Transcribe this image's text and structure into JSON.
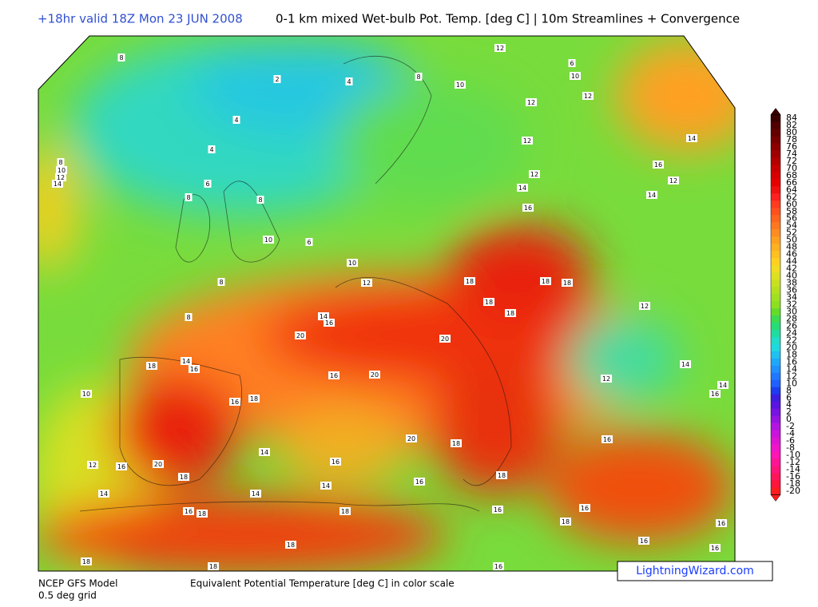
{
  "header": {
    "valid": "+18hr valid 18Z Mon 23 JUN 2008",
    "title": "0-1 km mixed Wet-bulb Pot. Temp. [deg C] | 10m Streamlines + Convergence"
  },
  "footer": {
    "model": "NCEP GFS Model",
    "grid": "0.5 deg grid",
    "scale_note": "Equivalent Potential Temperature [deg C] in color scale",
    "brand": "LightningWizard.com"
  },
  "colorbar": {
    "labels": [
      84,
      82,
      80,
      78,
      76,
      74,
      72,
      70,
      68,
      66,
      64,
      62,
      60,
      58,
      56,
      54,
      52,
      50,
      48,
      46,
      44,
      42,
      40,
      38,
      36,
      34,
      32,
      30,
      28,
      26,
      24,
      22,
      20,
      18,
      16,
      14,
      12,
      10,
      8,
      6,
      4,
      2,
      0,
      -2,
      -4,
      -6,
      -8,
      -10,
      -12,
      -14,
      -16,
      -18,
      -20
    ],
    "colors": [
      "#3a0000",
      "#500000",
      "#640000",
      "#780000",
      "#8c0000",
      "#a00000",
      "#b40000",
      "#c80000",
      "#d80000",
      "#e60000",
      "#f01010",
      "#ff2020",
      "#ff3c1e",
      "#ff501e",
      "#ff641e",
      "#ff7820",
      "#ff8c20",
      "#ffa020",
      "#ffb020",
      "#ffc020",
      "#ffd020",
      "#f0dc20",
      "#dce020",
      "#c8e020",
      "#b4e020",
      "#a0e020",
      "#8ce020",
      "#64dc28",
      "#3cdc50",
      "#28dc78",
      "#20dca0",
      "#20dcc8",
      "#20d8e0",
      "#20c0f0",
      "#20a8f8",
      "#2090ff",
      "#2078ff",
      "#2060ff",
      "#1e3cf0",
      "#3c1ee0",
      "#5a14e0",
      "#7814e0",
      "#9614e0",
      "#b414e0",
      "#c814dc",
      "#dc14d2",
      "#f014c8",
      "#ff14b4",
      "#ff1496",
      "#ff1478",
      "#ff145a",
      "#ff143c",
      "#ff1e1e"
    ]
  },
  "map": {
    "contour_labels": [
      8,
      2,
      4,
      4,
      4,
      8,
      10,
      12,
      14,
      6,
      8,
      8,
      10,
      6,
      8,
      8,
      10,
      12,
      8,
      10,
      12,
      6,
      10,
      12,
      12,
      12,
      12,
      14,
      16,
      14,
      16,
      12,
      14,
      12,
      18,
      18,
      18,
      18,
      18,
      20,
      20,
      14,
      16,
      18,
      14,
      16,
      10,
      16,
      18,
      20,
      16,
      20,
      18,
      16,
      14,
      12,
      14,
      16,
      20,
      16,
      12,
      18,
      14,
      16,
      14,
      16,
      18,
      14,
      14,
      18,
      16,
      18,
      16,
      16,
      18,
      18,
      16,
      16,
      16,
      18,
      18,
      16
    ]
  }
}
